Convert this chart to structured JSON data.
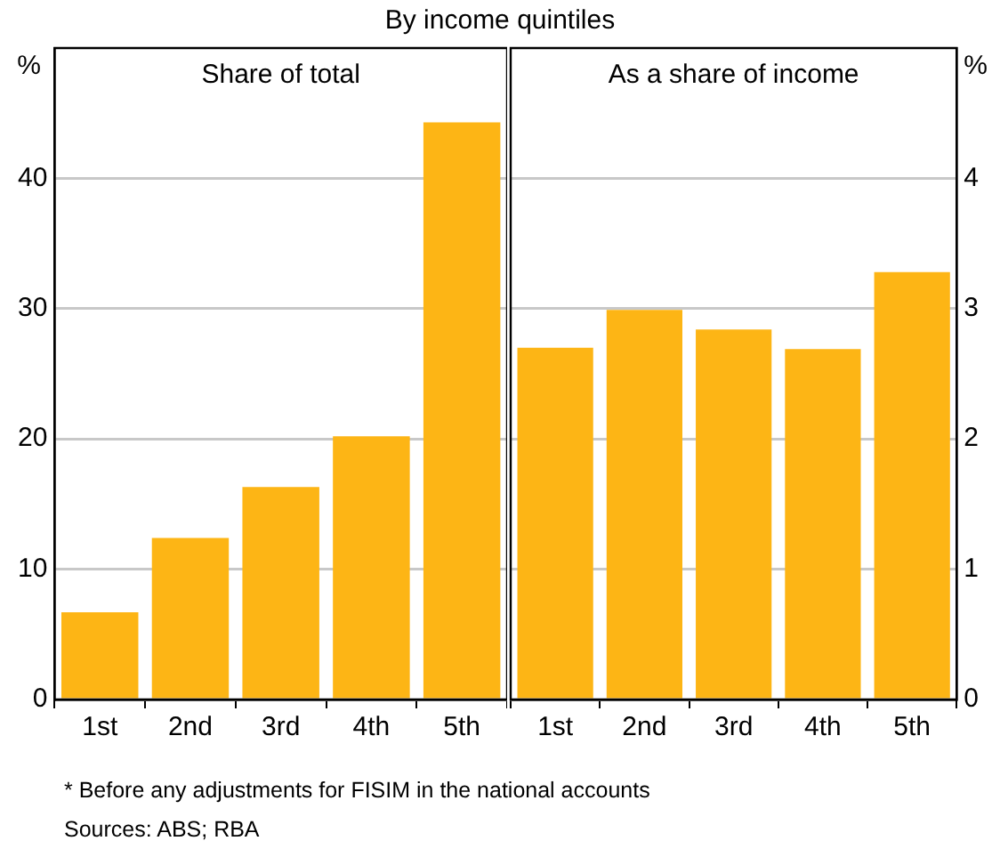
{
  "chart_data": [
    {
      "type": "bar",
      "title": "By income quintiles",
      "subtitle": "Share of total",
      "ylabel": "%",
      "categories": [
        "1st",
        "2nd",
        "3rd",
        "4th",
        "5th"
      ],
      "series": [
        {
          "color": "#fdb515",
          "values": [
            6.7,
            12.4,
            16.3,
            20.2,
            44.3
          ]
        }
      ],
      "ylim": [
        0,
        50
      ],
      "yticks": [
        0,
        10,
        20,
        30,
        40
      ],
      "grid": "y",
      "annotations": [
        "* Before any adjustments for FISIM in the national accounts",
        "Sources: ABS; RBA"
      ]
    },
    {
      "type": "bar",
      "subtitle": "As a share of income",
      "y2label": "%",
      "categories": [
        "1st",
        "2nd",
        "3rd",
        "4th",
        "5th"
      ],
      "series": [
        {
          "color": "#fdb515",
          "values": [
            2.7,
            2.99,
            2.84,
            2.69,
            3.28
          ],
          "axis": "y2"
        }
      ],
      "y2lim": [
        0,
        5
      ],
      "y2ticks": [
        0,
        1,
        2,
        3,
        4
      ],
      "grid": "y"
    }
  ]
}
